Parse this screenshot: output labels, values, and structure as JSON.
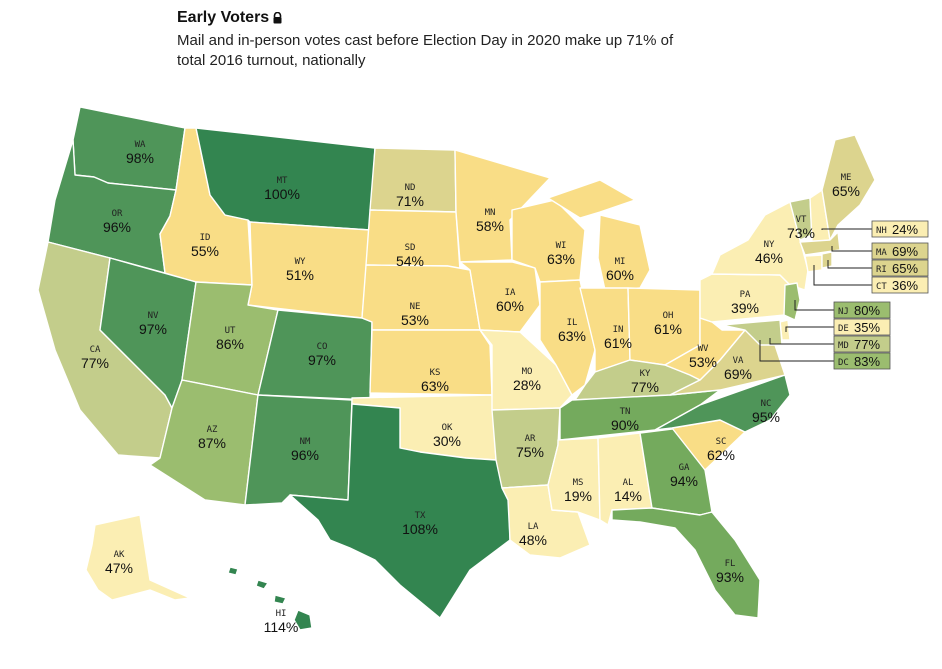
{
  "header": {
    "title": "Early Voters",
    "subtitle_line1": "Mail and in-person votes cast before Election Day in 2020 make up 71% of",
    "subtitle_line2": "total 2016 turnout, nationally"
  },
  "legend_scale": {
    "colors": [
      "#fbeeb3",
      "#f9dd86",
      "#dcd48e",
      "#c3cd8b",
      "#9bbd6f",
      "#74aa5d",
      "#4f9559",
      "#338550"
    ],
    "thresholds": [
      50,
      65,
      72,
      80,
      88,
      95,
      100
    ]
  },
  "states": [
    {
      "abbr": "WA",
      "value": "98%"
    },
    {
      "abbr": "OR",
      "value": "96%"
    },
    {
      "abbr": "CA",
      "value": "77%"
    },
    {
      "abbr": "ID",
      "value": "55%"
    },
    {
      "abbr": "NV",
      "value": "97%"
    },
    {
      "abbr": "MT",
      "value": "100%"
    },
    {
      "abbr": "WY",
      "value": "51%"
    },
    {
      "abbr": "UT",
      "value": "86%"
    },
    {
      "abbr": "AZ",
      "value": "87%"
    },
    {
      "abbr": "CO",
      "value": "97%"
    },
    {
      "abbr": "NM",
      "value": "96%"
    },
    {
      "abbr": "ND",
      "value": "71%"
    },
    {
      "abbr": "SD",
      "value": "54%"
    },
    {
      "abbr": "NE",
      "value": "53%"
    },
    {
      "abbr": "KS",
      "value": "63%"
    },
    {
      "abbr": "OK",
      "value": "30%"
    },
    {
      "abbr": "TX",
      "value": "108%"
    },
    {
      "abbr": "MN",
      "value": "58%"
    },
    {
      "abbr": "IA",
      "value": "60%"
    },
    {
      "abbr": "MO",
      "value": "28%"
    },
    {
      "abbr": "AR",
      "value": "75%"
    },
    {
      "abbr": "LA",
      "value": "48%"
    },
    {
      "abbr": "WI",
      "value": "63%"
    },
    {
      "abbr": "IL",
      "value": "63%"
    },
    {
      "abbr": "MI",
      "value": "60%"
    },
    {
      "abbr": "IN",
      "value": "61%"
    },
    {
      "abbr": "OH",
      "value": "61%"
    },
    {
      "abbr": "KY",
      "value": "77%"
    },
    {
      "abbr": "TN",
      "value": "90%"
    },
    {
      "abbr": "MS",
      "value": "19%"
    },
    {
      "abbr": "AL",
      "value": "14%"
    },
    {
      "abbr": "GA",
      "value": "94%"
    },
    {
      "abbr": "FL",
      "value": "93%"
    },
    {
      "abbr": "SC",
      "value": "62%"
    },
    {
      "abbr": "NC",
      "value": "95%"
    },
    {
      "abbr": "VA",
      "value": "69%"
    },
    {
      "abbr": "WV",
      "value": "53%"
    },
    {
      "abbr": "PA",
      "value": "39%"
    },
    {
      "abbr": "NY",
      "value": "46%"
    },
    {
      "abbr": "VT",
      "value": "73%"
    },
    {
      "abbr": "ME",
      "value": "65%"
    },
    {
      "abbr": "AK",
      "value": "47%"
    },
    {
      "abbr": "HI",
      "value": "114%"
    }
  ],
  "callouts": [
    {
      "abbr": "NH",
      "value": "24%"
    },
    {
      "abbr": "MA",
      "value": "69%"
    },
    {
      "abbr": "RI",
      "value": "65%"
    },
    {
      "abbr": "CT",
      "value": "36%"
    },
    {
      "abbr": "NJ",
      "value": "80%"
    },
    {
      "abbr": "DE",
      "value": "35%"
    },
    {
      "abbr": "MD",
      "value": "77%"
    },
    {
      "abbr": "DC",
      "value": "83%"
    }
  ]
}
